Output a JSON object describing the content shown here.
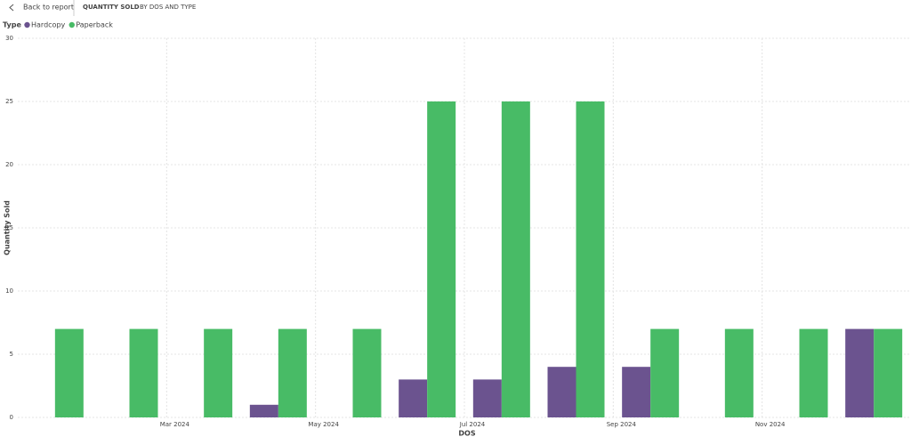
{
  "header": {
    "back": "Back to report",
    "title": "QUANTITY SOLD",
    "subtitle": "BY DOS AND TYPE"
  },
  "chart_data": {
    "type": "bar",
    "legend_title": "Type",
    "x_label": "DOS",
    "y_label": "Quantity Sold",
    "categories": [
      null,
      null,
      "Mar 2024",
      null,
      "May 2024",
      null,
      "Jul 2024",
      null,
      "Sep 2024",
      null,
      "Nov 2024",
      null
    ],
    "series": [
      {
        "name": "Hardcopy",
        "color": "#6b538f",
        "values": [
          null,
          null,
          null,
          1,
          null,
          3,
          3,
          4,
          4,
          null,
          null,
          7
        ]
      },
      {
        "name": "Paperback",
        "color": "#48bb66",
        "values": [
          7,
          7,
          7,
          7,
          7,
          25,
          25,
          25,
          7,
          7,
          7,
          7
        ]
      }
    ],
    "ylim": [
      0,
      30
    ],
    "yticks": [
      0,
      5,
      10,
      15,
      20,
      25,
      30
    ],
    "grid": true
  }
}
